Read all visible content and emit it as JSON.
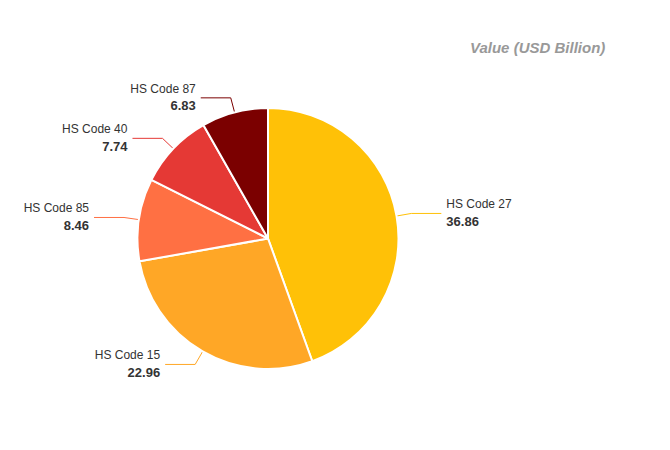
{
  "chart_data": {
    "type": "pie",
    "categories": [
      "HS Code 27",
      "HS Code 15",
      "HS Code 85",
      "HS Code 40",
      "HS Code 87"
    ],
    "values": [
      36.86,
      22.96,
      8.46,
      7.74,
      6.83
    ],
    "colors": [
      "#FFC107",
      "#FFA726",
      "#FF7043",
      "#E53935",
      "#7B0000"
    ],
    "data_labels": true,
    "annotations": [
      "Value (USD Billion)"
    ]
  }
}
